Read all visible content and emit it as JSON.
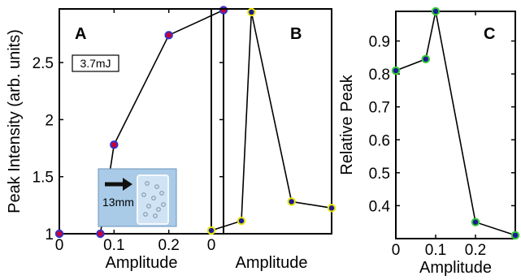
{
  "chart_data": [
    {
      "type": "line",
      "panel_label": "A",
      "xlabel": "Amplitude",
      "ylabel": "Peak Intensity (arb. units)",
      "xlim": [
        0,
        0.3
      ],
      "ylim": [
        1,
        2.97
      ],
      "xticks": [
        0,
        0.1,
        0.2
      ],
      "xtick_labels": [
        "0",
        "0.1",
        "0.2"
      ],
      "yticks": [
        1,
        1.5,
        2,
        2.5
      ],
      "ytick_labels": [
        "1",
        "1.5",
        "2",
        "2.5"
      ],
      "x": [
        0,
        0.075,
        0.1,
        0.2,
        0.3
      ],
      "y": [
        1.0,
        1.0,
        1.78,
        2.74,
        2.96
      ],
      "marker_fill": "#cc0033",
      "marker_edge": "#3333cc",
      "annotation": "3.7mJ",
      "inset_label": "13mm",
      "inset_colors": {
        "background": "#a9cbe8",
        "glass": "#cfe3f4",
        "arrow": "#111111"
      }
    },
    {
      "type": "line",
      "panel_label": "B",
      "xlabel": "Amplitude",
      "xlim": [
        0,
        0.3
      ],
      "ylim": [
        0.3,
        1.0
      ],
      "xticks": [
        0
      ],
      "xtick_labels": [
        "0"
      ],
      "x": [
        0,
        0.075,
        0.1,
        0.2,
        0.3
      ],
      "y": [
        0.31,
        0.34,
        0.99,
        0.4,
        0.38
      ],
      "marker_fill": "#1a1a99",
      "marker_edge": "#e6e600"
    },
    {
      "type": "line",
      "panel_label": "C",
      "xlabel": "Amplitude",
      "ylabel": "Relative Peak",
      "xlim": [
        0,
        0.3
      ],
      "ylim": [
        0.3,
        0.99
      ],
      "xticks": [
        0,
        0.1,
        0.2
      ],
      "xtick_labels": [
        "0",
        "0.1",
        "0.2"
      ],
      "yticks": [
        0.4,
        0.5,
        0.6,
        0.7,
        0.8,
        0.9
      ],
      "ytick_labels": [
        "0.4",
        "0.5",
        "0.6",
        "0.7",
        "0.8",
        "0.9"
      ],
      "x": [
        0,
        0.075,
        0.1,
        0.2,
        0.3
      ],
      "y": [
        0.81,
        0.845,
        0.99,
        0.35,
        0.31
      ],
      "marker_fill": "#1a1a99",
      "marker_edge": "#33cc33"
    }
  ]
}
